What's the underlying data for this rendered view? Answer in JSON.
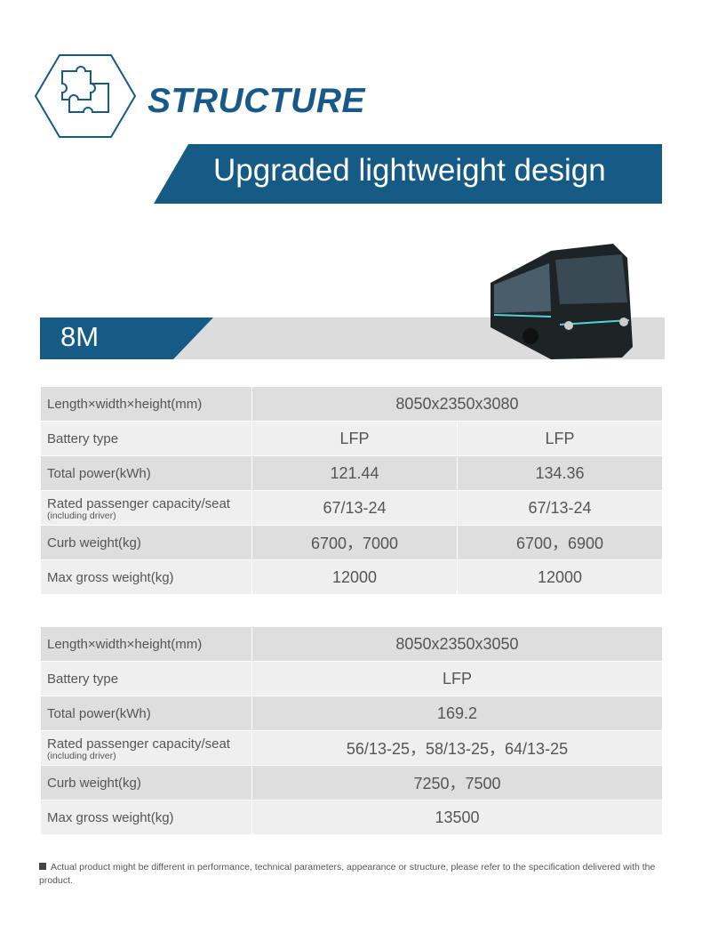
{
  "header": {
    "title": "STRUCTURE",
    "banner": "Upgraded lightweight design"
  },
  "section": "8M",
  "tables": [
    {
      "rows": [
        {
          "label": "Length×width×height(mm)",
          "cells": [
            "8050x2350x3080"
          ]
        },
        {
          "label": "Battery type",
          "cells": [
            "LFP",
            "LFP"
          ]
        },
        {
          "label": "Total power(kWh)",
          "cells": [
            "121.44",
            "134.36"
          ]
        },
        {
          "label": "Rated passenger capacity/seat",
          "note": "(including driver)",
          "cells": [
            "67/13-24",
            "67/13-24"
          ]
        },
        {
          "label": "Curb weight(kg)",
          "cells": [
            "6700，7000",
            "6700，6900"
          ]
        },
        {
          "label": "Max gross weight(kg)",
          "cells": [
            "12000",
            "12000"
          ]
        }
      ]
    },
    {
      "rows": [
        {
          "label": "Length×width×height(mm)",
          "cells": [
            "8050x2350x3050"
          ]
        },
        {
          "label": "Battery type",
          "cells": [
            "LFP"
          ]
        },
        {
          "label": "Total power(kWh)",
          "cells": [
            "169.2"
          ]
        },
        {
          "label": "Rated passenger capacity/seat",
          "note": "(including driver)",
          "cells": [
            "56/13-25，58/13-25，64/13-25"
          ]
        },
        {
          "label": "Curb weight(kg)",
          "cells": [
            "7250，7500"
          ]
        },
        {
          "label": "Max gross weight(kg)",
          "cells": [
            "13500"
          ]
        }
      ]
    }
  ],
  "footnote": "Actual product might be different in performance, technical parameters, appearance or structure, please refer to the specification delivered with the product."
}
